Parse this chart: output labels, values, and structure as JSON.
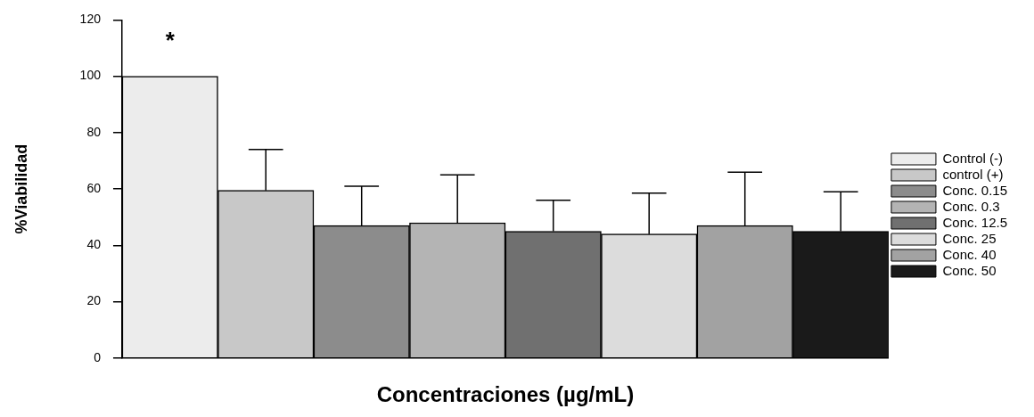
{
  "chart_data": {
    "type": "bar",
    "xlabel": "Concentraciones (µg/mL)",
    "ylabel": "%Viabilidad",
    "categories": [
      null,
      null,
      null,
      null,
      null,
      null,
      null,
      null
    ],
    "series": [
      {
        "name": "Control (-)",
        "color": "#ececec",
        "values": [
          100,
          null,
          null,
          null,
          null,
          null,
          null,
          null
        ],
        "errors": [
          null,
          null,
          null,
          null,
          null,
          null,
          null,
          null
        ]
      },
      {
        "name": "control (+)",
        "color": "#c8c8c8",
        "values": [
          null,
          59.5,
          null,
          null,
          null,
          null,
          null,
          null
        ],
        "errors": [
          null,
          [
            59.5,
            74
          ],
          null,
          null,
          null,
          null,
          null,
          null
        ]
      },
      {
        "name": "Conc. 0.15",
        "color": "#8c8c8c",
        "values": [
          null,
          null,
          47,
          null,
          null,
          null,
          null,
          null
        ],
        "errors": [
          null,
          null,
          [
            47,
            61
          ],
          null,
          null,
          null,
          null,
          null
        ]
      },
      {
        "name": "Conc. 0.3",
        "color": "#b4b4b4",
        "values": [
          null,
          null,
          null,
          48,
          null,
          null,
          null,
          null
        ],
        "errors": [
          null,
          null,
          null,
          [
            48,
            65
          ],
          null,
          null,
          null,
          null
        ]
      },
      {
        "name": "Conc. 12.5",
        "color": "#707070",
        "values": [
          null,
          null,
          null,
          null,
          45,
          null,
          null,
          null
        ],
        "errors": [
          null,
          null,
          null,
          null,
          [
            45,
            56
          ],
          null,
          null,
          null
        ]
      },
      {
        "name": "Conc. 25",
        "color": "#dcdcdc",
        "values": [
          null,
          null,
          null,
          null,
          null,
          44,
          null,
          null
        ],
        "errors": [
          null,
          null,
          null,
          null,
          null,
          [
            44,
            58.5
          ],
          null,
          null
        ]
      },
      {
        "name": "Conc. 40",
        "color": "#a2a2a2",
        "values": [
          null,
          null,
          null,
          null,
          null,
          null,
          47,
          null
        ],
        "errors": [
          null,
          null,
          null,
          null,
          null,
          null,
          [
            47,
            66
          ],
          null
        ]
      },
      {
        "name": "Conc. 50",
        "color": "#1a1a1a",
        "values": [
          null,
          null,
          null,
          null,
          null,
          null,
          null,
          45
        ],
        "errors": [
          null,
          null,
          null,
          null,
          null,
          null,
          null,
          [
            45,
            59
          ]
        ]
      }
    ],
    "ylim": [
      0,
      120
    ],
    "yticks": [
      0,
      20,
      40,
      60,
      80,
      100,
      120
    ],
    "grid": false,
    "legend": "right",
    "annotations": [
      "*"
    ]
  }
}
